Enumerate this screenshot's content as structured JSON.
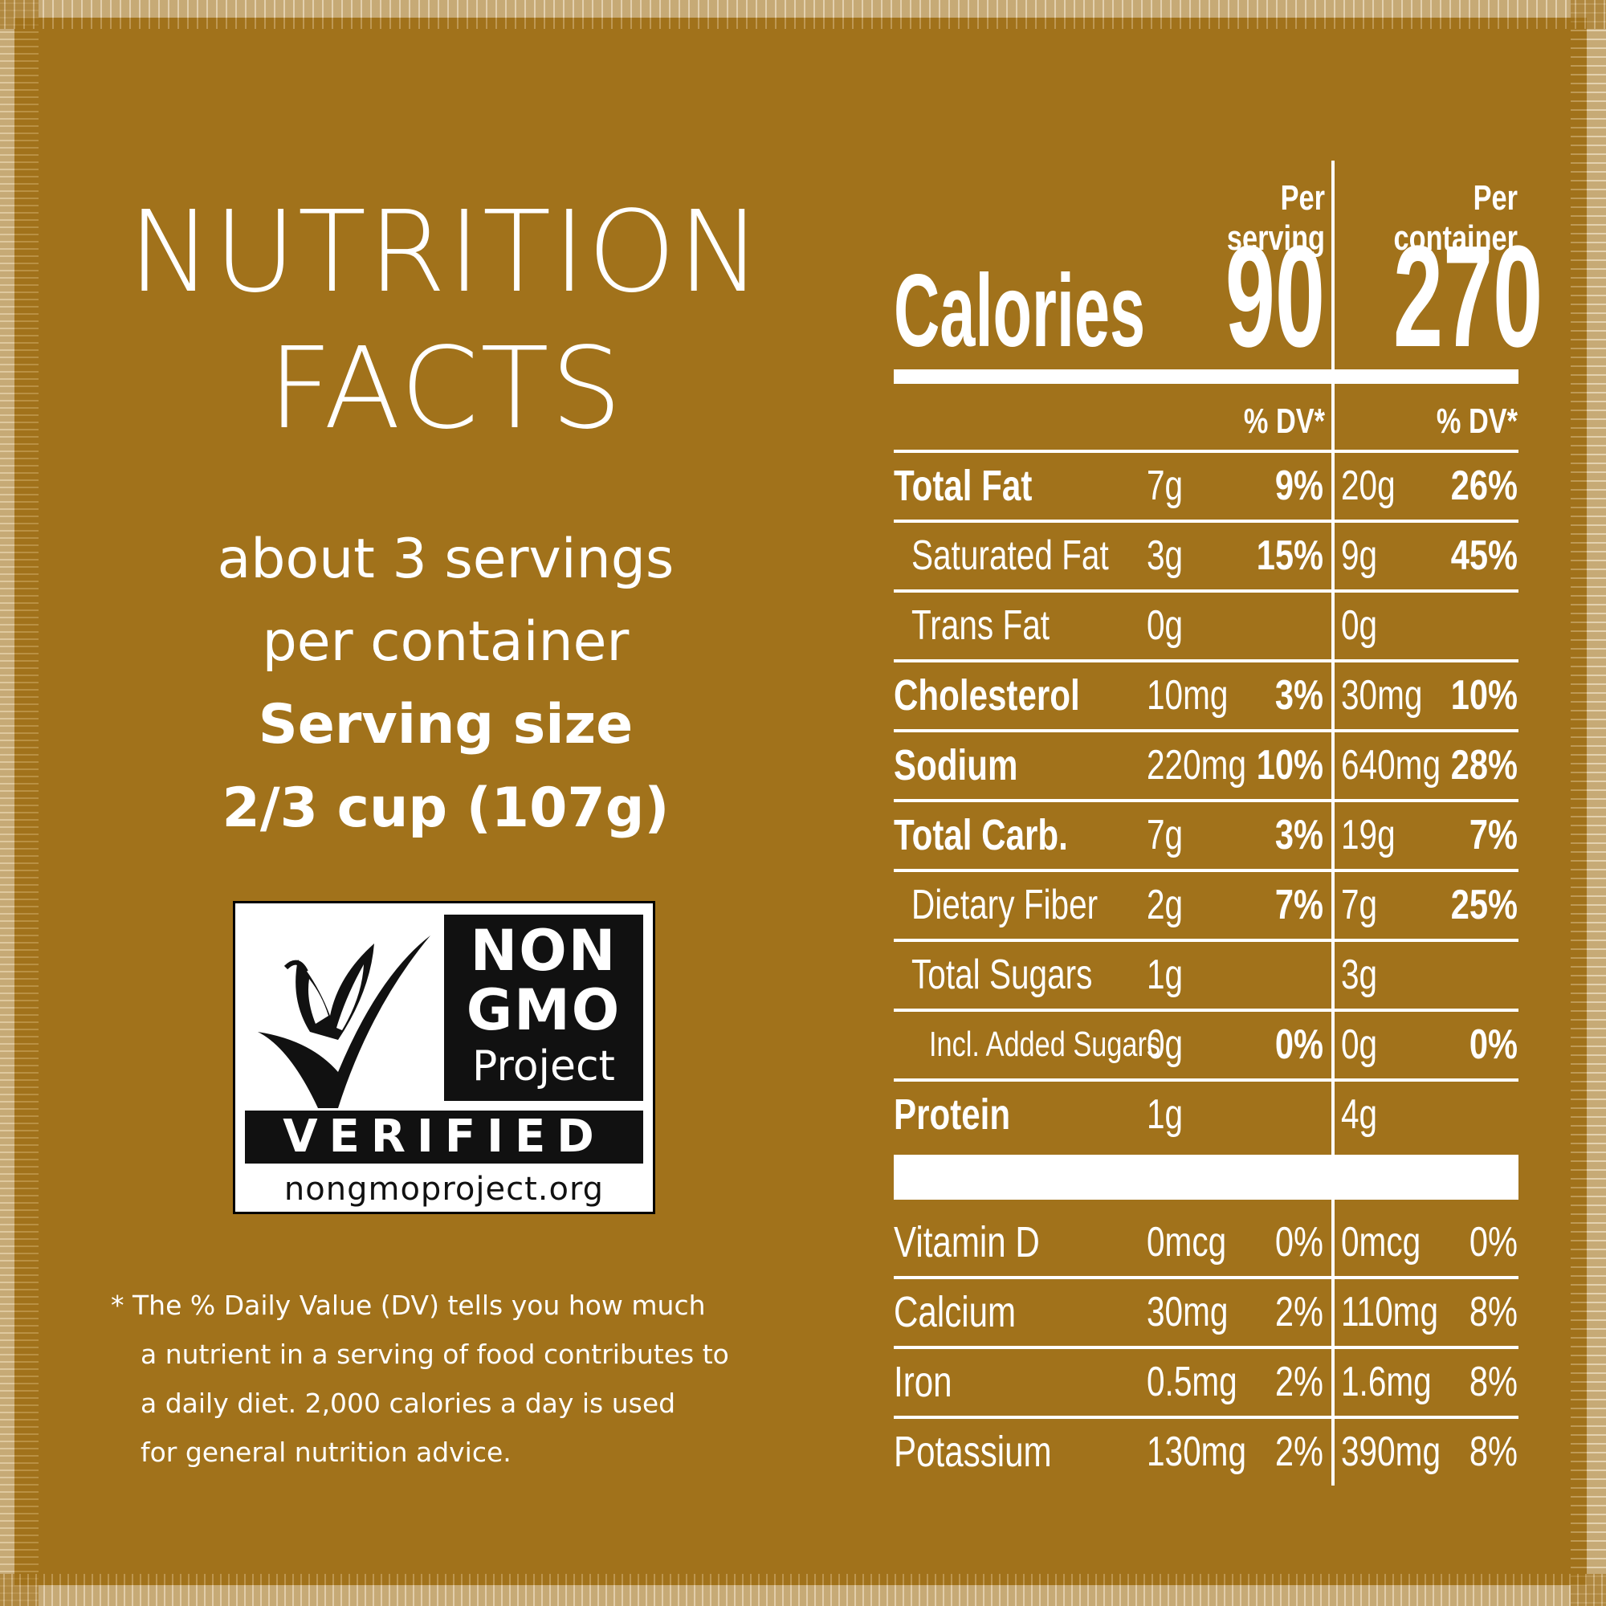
{
  "header": {
    "title_line1": "NUTRITION",
    "title_line2": "FACTS",
    "servings_line1": "about 3 servings",
    "servings_line2": "per container",
    "serving_size_label": "Serving size",
    "serving_size_value": "2/3 cup (107g)"
  },
  "logo": {
    "line1": "NON",
    "line2": "GMO",
    "line3": "Project",
    "verified": "VERIFIED",
    "url": "nongmoproject.org"
  },
  "footnote": {
    "line1": "* The % Daily Value (DV) tells you how much",
    "line2": "a nutrient in a serving of food contributes to",
    "line3": "a daily diet. 2,000 calories a day is used",
    "line4": "for general nutrition advice."
  },
  "table": {
    "per_serving_label": "Per serving",
    "per_container_label": "Per container",
    "calories_label": "Calories",
    "calories_serving": "90",
    "calories_container": "270",
    "dv_label_serving": "% DV*",
    "dv_label_container": "% DV*",
    "rows": [
      {
        "label": "Total Fat",
        "s_amt": "7g",
        "s_pct": "9%",
        "c_amt": "20g",
        "c_pct": "26%"
      },
      {
        "label": "Saturated Fat",
        "s_amt": "3g",
        "s_pct": "15%",
        "c_amt": "9g",
        "c_pct": "45%"
      },
      {
        "label": "Trans Fat",
        "s_amt": "0g",
        "s_pct": "",
        "c_amt": "0g",
        "c_pct": ""
      },
      {
        "label": "Cholesterol",
        "s_amt": "10mg",
        "s_pct": "3%",
        "c_amt": "30mg",
        "c_pct": "10%"
      },
      {
        "label": "Sodium",
        "s_amt": "220mg",
        "s_pct": "10%",
        "c_amt": "640mg",
        "c_pct": "28%"
      },
      {
        "label": "Total Carb.",
        "s_amt": "7g",
        "s_pct": "3%",
        "c_amt": "19g",
        "c_pct": "7%"
      },
      {
        "label": "Dietary Fiber",
        "s_amt": "2g",
        "s_pct": "7%",
        "c_amt": "7g",
        "c_pct": "25%"
      },
      {
        "label": "Total Sugars",
        "s_amt": "1g",
        "s_pct": "",
        "c_amt": "3g",
        "c_pct": ""
      },
      {
        "label": "Incl. Added Sugars",
        "s_amt": "0g",
        "s_pct": "0%",
        "c_amt": "0g",
        "c_pct": "0%"
      },
      {
        "label": "Protein",
        "s_amt": "1g",
        "s_pct": "",
        "c_amt": "4g",
        "c_pct": ""
      }
    ],
    "vitamins": [
      {
        "label": "Vitamin D",
        "s_amt": "0mcg",
        "s_pct": "0%",
        "c_amt": "0mcg",
        "c_pct": "0%"
      },
      {
        "label": "Calcium",
        "s_amt": "30mg",
        "s_pct": "2%",
        "c_amt": "110mg",
        "c_pct": "8%"
      },
      {
        "label": "Iron",
        "s_amt": "0.5mg",
        "s_pct": "2%",
        "c_amt": "1.6mg",
        "c_pct": "8%"
      },
      {
        "label": "Potassium",
        "s_amt": "130mg",
        "s_pct": "2%",
        "c_amt": "390mg",
        "c_pct": "8%"
      }
    ]
  }
}
